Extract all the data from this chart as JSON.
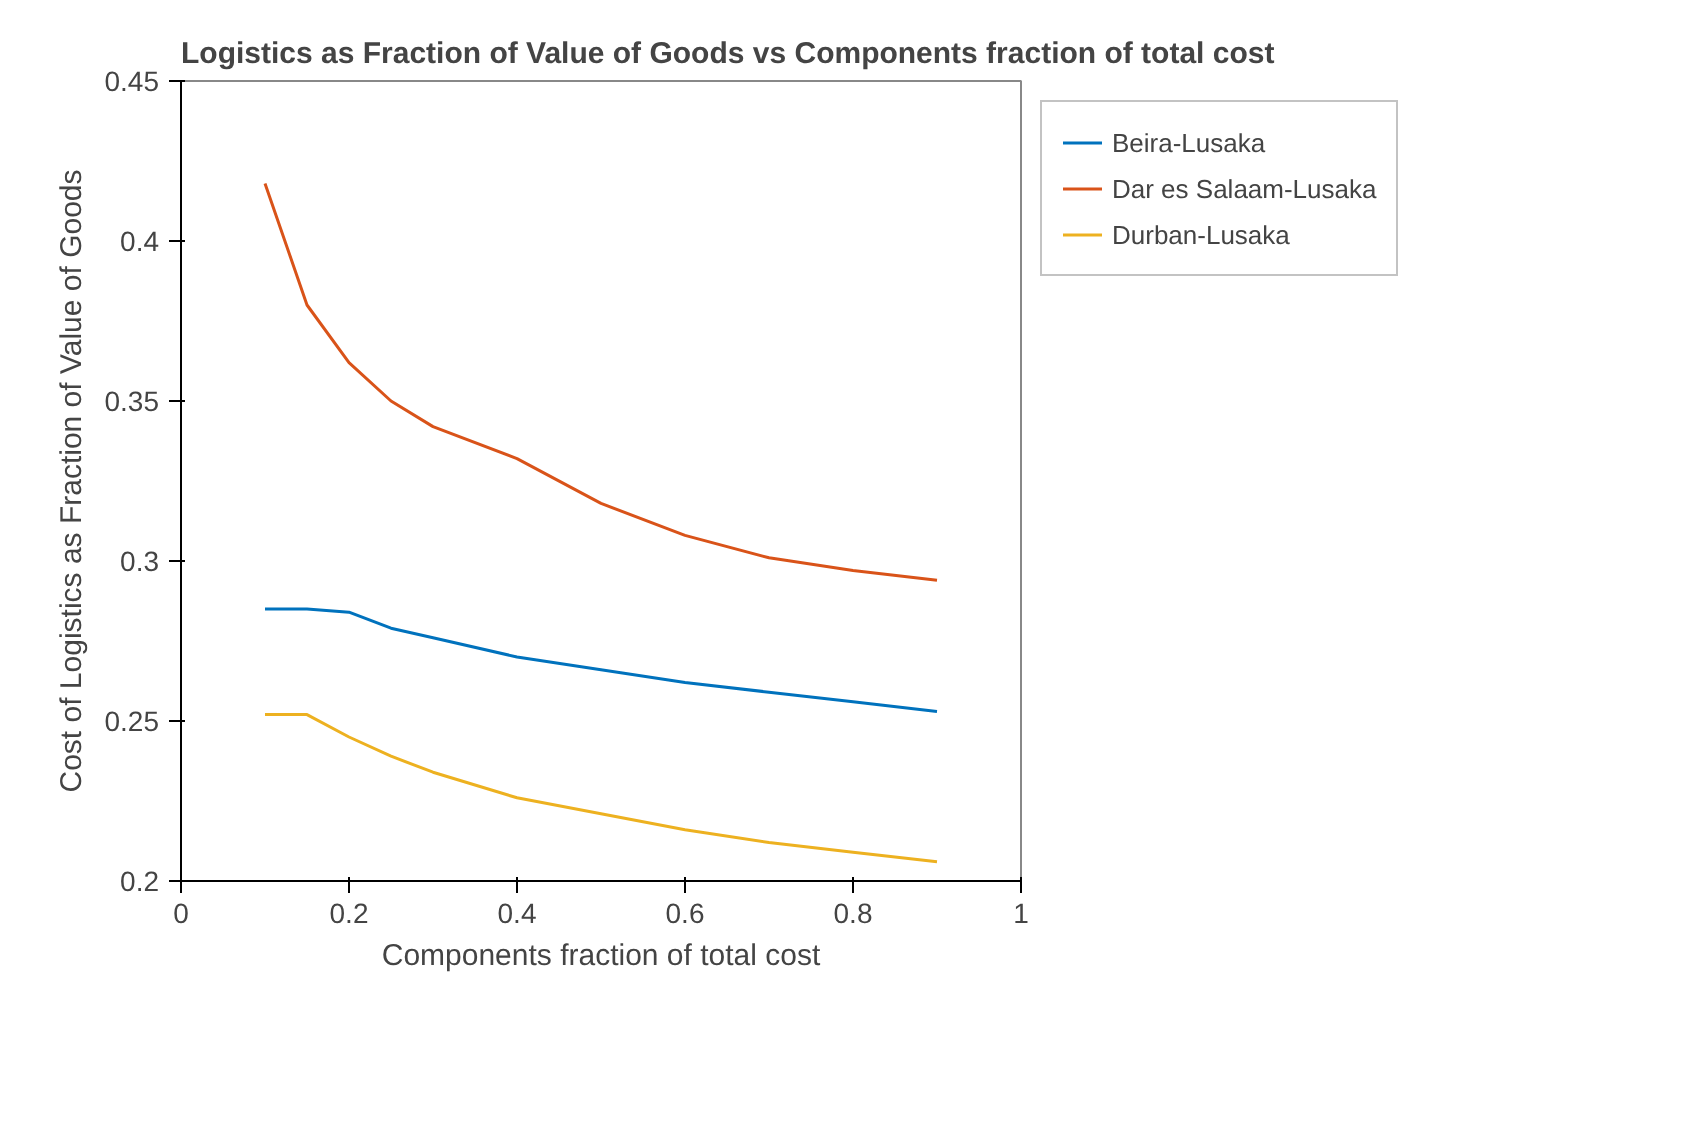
{
  "chart_data": {
    "type": "line",
    "title": "Logistics as Fraction of Value of Goods vs Components fraction of total cost",
    "xlabel": "Components fraction of total cost",
    "ylabel": "Cost of Logistics as Fraction of Value of Goods",
    "x": [
      0.1,
      0.15,
      0.2,
      0.25,
      0.3,
      0.4,
      0.5,
      0.6,
      0.7,
      0.8,
      0.9
    ],
    "series": [
      {
        "name": "Beira-Lusaka",
        "color": "#0072bd",
        "values": [
          0.285,
          0.285,
          0.284,
          0.279,
          0.276,
          0.27,
          0.266,
          0.262,
          0.259,
          0.256,
          0.253
        ]
      },
      {
        "name": "Dar es Salaam-Lusaka",
        "color": "#d95319",
        "values": [
          0.418,
          0.38,
          0.362,
          0.35,
          0.342,
          0.332,
          0.318,
          0.308,
          0.301,
          0.297,
          0.294
        ]
      },
      {
        "name": "Durban-Lusaka",
        "color": "#edb120",
        "values": [
          0.252,
          0.252,
          0.245,
          0.239,
          0.234,
          0.226,
          0.221,
          0.216,
          0.212,
          0.209,
          0.206
        ]
      }
    ],
    "xlim": [
      0,
      1
    ],
    "xticks": [
      0,
      0.2,
      0.4,
      0.6,
      0.8,
      1
    ],
    "ylim": [
      0.2,
      0.45
    ],
    "yticks": [
      0.2,
      0.25,
      0.3,
      0.35,
      0.4,
      0.45
    ],
    "grid": false,
    "legend": "top right",
    "line_style": "solid",
    "marker": "none"
  }
}
